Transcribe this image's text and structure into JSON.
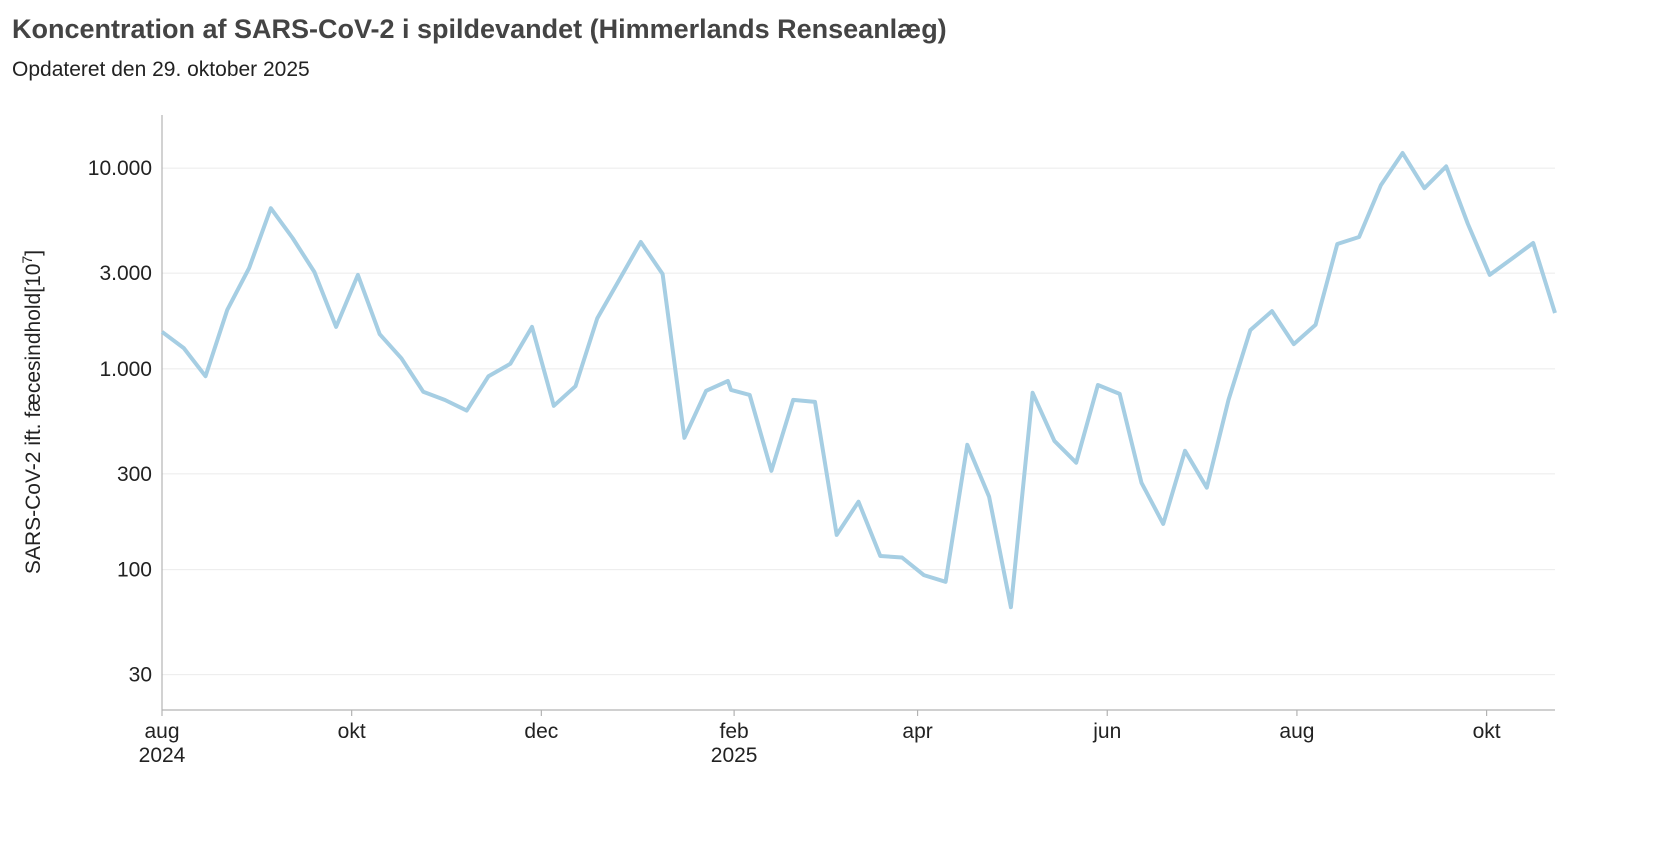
{
  "chart_data": {
    "type": "line",
    "title": "Koncentration af SARS-CoV-2 i spildevandet (Himmerlands Renseanlæg)",
    "subtitle": "Opdateret den 29. oktober 2025",
    "xlabel": "",
    "ylabel": "SARS-CoV-2 ift. fæcesindhold[10",
    "ylabel_superscript": "7",
    "ylabel_suffix": "]",
    "yscale": "log",
    "ylim": [
      20,
      18400
    ],
    "xlim": [
      "2024-08-01",
      "2025-10-23"
    ],
    "grid": "horizontal",
    "line_color": "#a6cee3",
    "yticks": [
      {
        "value": 30,
        "label": "30"
      },
      {
        "value": 100,
        "label": "100"
      },
      {
        "value": 300,
        "label": "300"
      },
      {
        "value": 1000,
        "label": "1.000"
      },
      {
        "value": 3000,
        "label": "3.000"
      },
      {
        "value": 10000,
        "label": "10.000"
      }
    ],
    "xticks": [
      {
        "date": "2024-08-01",
        "label": "aug",
        "year": "2024"
      },
      {
        "date": "2024-10-01",
        "label": "okt",
        "year": ""
      },
      {
        "date": "2024-12-01",
        "label": "dec",
        "year": ""
      },
      {
        "date": "2025-02-01",
        "label": "feb",
        "year": "2025"
      },
      {
        "date": "2025-04-01",
        "label": "apr",
        "year": ""
      },
      {
        "date": "2025-06-01",
        "label": "jun",
        "year": ""
      },
      {
        "date": "2025-08-01",
        "label": "aug",
        "year": ""
      },
      {
        "date": "2025-10-01",
        "label": "okt",
        "year": ""
      }
    ],
    "x": [
      "2024-08-01",
      "2024-08-08",
      "2024-08-15",
      "2024-08-22",
      "2024-08-29",
      "2024-09-05",
      "2024-09-12",
      "2024-09-19",
      "2024-09-26",
      "2024-10-03",
      "2024-10-10",
      "2024-10-17",
      "2024-10-24",
      "2024-10-31",
      "2024-11-07",
      "2024-11-14",
      "2024-11-21",
      "2024-11-28",
      "2024-12-05",
      "2024-12-12",
      "2024-12-19",
      "2024-12-26",
      "2025-01-02",
      "2025-01-09",
      "2025-01-16",
      "2025-01-23",
      "2025-01-30",
      "2025-01-31",
      "2025-02-06",
      "2025-02-13",
      "2025-02-20",
      "2025-02-27",
      "2025-03-06",
      "2025-03-13",
      "2025-03-20",
      "2025-03-27",
      "2025-04-03",
      "2025-04-10",
      "2025-04-17",
      "2025-04-24",
      "2025-05-01",
      "2025-05-08",
      "2025-05-15",
      "2025-05-22",
      "2025-05-29",
      "2025-06-05",
      "2025-06-12",
      "2025-06-19",
      "2025-06-26",
      "2025-07-03",
      "2025-07-10",
      "2025-07-17",
      "2025-07-24",
      "2025-07-31",
      "2025-08-07",
      "2025-08-14",
      "2025-08-21",
      "2025-08-28",
      "2025-09-04",
      "2025-09-11",
      "2025-09-18",
      "2025-09-25",
      "2025-10-02",
      "2025-10-09",
      "2025-10-16",
      "2025-10-23"
    ],
    "series": [
      {
        "name": "Himmerlands Renseanlæg",
        "values": [
          1530,
          1270,
          920,
          1970,
          3180,
          6320,
          4490,
          3040,
          1620,
          2940,
          1490,
          1130,
          770,
          700,
          620,
          920,
          1060,
          1620,
          655,
          820,
          1790,
          2770,
          4290,
          2970,
          454,
          778,
          871,
          786,
          742,
          311,
          701,
          685,
          149,
          218,
          117,
          115,
          94,
          87,
          419,
          231,
          65,
          760,
          438,
          341,
          832,
          751,
          271,
          169,
          391,
          256,
          701,
          1560,
          1940,
          1330,
          1660,
          4190,
          4540,
          8230,
          11900,
          7950,
          10200,
          5270,
          2940,
          3530,
          4240,
          1900
        ]
      }
    ]
  }
}
